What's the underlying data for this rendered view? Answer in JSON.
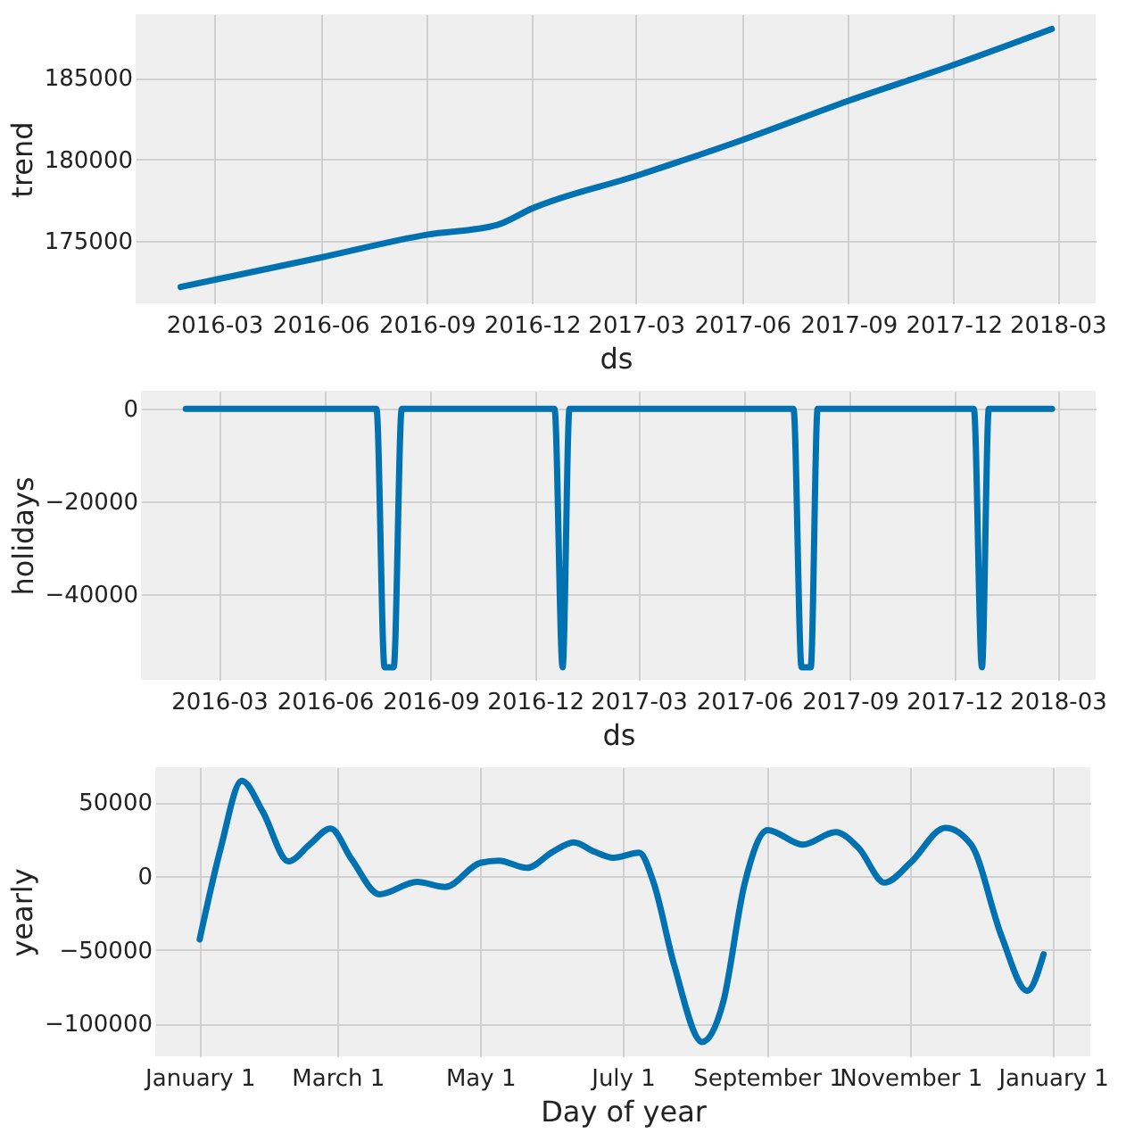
{
  "chart_data": [
    {
      "type": "line",
      "xlabel": "ds",
      "ylabel": "trend",
      "grid": true,
      "xlim": [
        "2015-12-24",
        "2018-04-03"
      ],
      "ylim": [
        171200,
        188900
      ],
      "yticks": [
        175000,
        180000,
        185000
      ],
      "xticks": [
        {
          "value": "2016-03-01",
          "label": "2016-03"
        },
        {
          "value": "2016-06-01",
          "label": "2016-06"
        },
        {
          "value": "2016-09-01",
          "label": "2016-09"
        },
        {
          "value": "2016-12-01",
          "label": "2016-12"
        },
        {
          "value": "2017-03-01",
          "label": "2017-03"
        },
        {
          "value": "2017-06-01",
          "label": "2017-06"
        },
        {
          "value": "2017-09-01",
          "label": "2017-09"
        },
        {
          "value": "2017-12-01",
          "label": "2017-12"
        },
        {
          "value": "2018-03-01",
          "label": "2018-03"
        }
      ],
      "series": [
        {
          "color": "#0072b2",
          "x": [
            "2016-02-01",
            "2016-06-01",
            "2016-09-01",
            "2016-11-01",
            "2016-12-01",
            "2017-03-01",
            "2017-06-01",
            "2017-09-01",
            "2017-12-01",
            "2018-02-24"
          ],
          "values": [
            172200,
            174000,
            175400,
            176000,
            177000,
            179000,
            181200,
            183600,
            185800,
            188000
          ]
        }
      ]
    },
    {
      "type": "line",
      "xlabel": "ds",
      "ylabel": "holidays",
      "grid": true,
      "xlim": [
        "2015-12-24",
        "2018-04-03"
      ],
      "ylim": [
        -58400,
        3900
      ],
      "yticks": [
        -40000,
        -20000,
        0
      ],
      "xticks": [
        {
          "value": "2016-03-01",
          "label": "2016-03"
        },
        {
          "value": "2016-06-01",
          "label": "2016-06"
        },
        {
          "value": "2016-09-01",
          "label": "2016-09"
        },
        {
          "value": "2016-12-01",
          "label": "2016-12"
        },
        {
          "value": "2017-03-01",
          "label": "2017-03"
        },
        {
          "value": "2017-06-01",
          "label": "2017-06"
        },
        {
          "value": "2017-09-01",
          "label": "2017-09"
        },
        {
          "value": "2017-12-01",
          "label": "2017-12"
        },
        {
          "value": "2018-03-01",
          "label": "2018-03"
        }
      ],
      "series": [
        {
          "color": "#0072b2",
          "x": [
            "2016-02-01",
            "2016-07-16",
            "2016-07-23",
            "2016-07-31",
            "2016-08-07",
            "2016-12-18",
            "2016-12-25",
            "2016-12-31",
            "2017-07-14",
            "2017-07-21",
            "2017-07-29",
            "2017-08-04",
            "2017-12-18",
            "2017-12-25",
            "2017-12-31",
            "2018-02-24"
          ],
          "values": [
            0,
            0,
            -55700,
            -55700,
            0,
            0,
            -55700,
            0,
            0,
            -55700,
            -55700,
            0,
            0,
            -55700,
            0,
            0
          ]
        }
      ]
    },
    {
      "type": "line",
      "xlabel": "Day of year",
      "ylabel": "yearly",
      "grid": true,
      "xlim": [
        "2016-12-13",
        "2018-01-17"
      ],
      "ylim": [
        -122300,
        73800
      ],
      "yticks": [
        -100000,
        -50000,
        0,
        50000
      ],
      "xticks": [
        {
          "value": "2017-01-01",
          "label": "January 1"
        },
        {
          "value": "2017-03-01",
          "label": "March 1"
        },
        {
          "value": "2017-05-01",
          "label": "May 1"
        },
        {
          "value": "2017-07-01",
          "label": "July 1"
        },
        {
          "value": "2017-09-01",
          "label": "September 1"
        },
        {
          "value": "2017-11-01",
          "label": "November 1"
        },
        {
          "value": "2018-01-01",
          "label": "January 1"
        }
      ],
      "series": [
        {
          "color": "#0072b2",
          "x": [
            "2017-01-01",
            "2017-01-10",
            "2017-01-19",
            "2017-01-28",
            "2017-02-08",
            "2017-02-17",
            "2017-02-26",
            "2017-03-07",
            "2017-03-19",
            "2017-04-04",
            "2017-04-16",
            "2017-05-01",
            "2017-05-09",
            "2017-05-21",
            "2017-06-01",
            "2017-06-10",
            "2017-06-19",
            "2017-06-27",
            "2017-07-08",
            "2017-07-14",
            "2017-07-23",
            "2017-08-04",
            "2017-08-13",
            "2017-08-22",
            "2017-09-01",
            "2017-09-16",
            "2017-09-30",
            "2017-10-10",
            "2017-10-21",
            "2017-11-01",
            "2017-11-16",
            "2017-11-27",
            "2017-12-10",
            "2017-12-21",
            "2017-12-28"
          ],
          "values": [
            -43000,
            18800,
            64500,
            43600,
            9900,
            21300,
            32200,
            11400,
            -12400,
            -4000,
            -7400,
            8900,
            10400,
            5500,
            16400,
            22800,
            16400,
            12400,
            15900,
            -3500,
            -60500,
            -112600,
            -85300,
            -6000,
            31200,
            21300,
            29800,
            18800,
            -4500,
            8900,
            32700,
            21300,
            -40700,
            -77900,
            -53100
          ]
        }
      ]
    }
  ]
}
